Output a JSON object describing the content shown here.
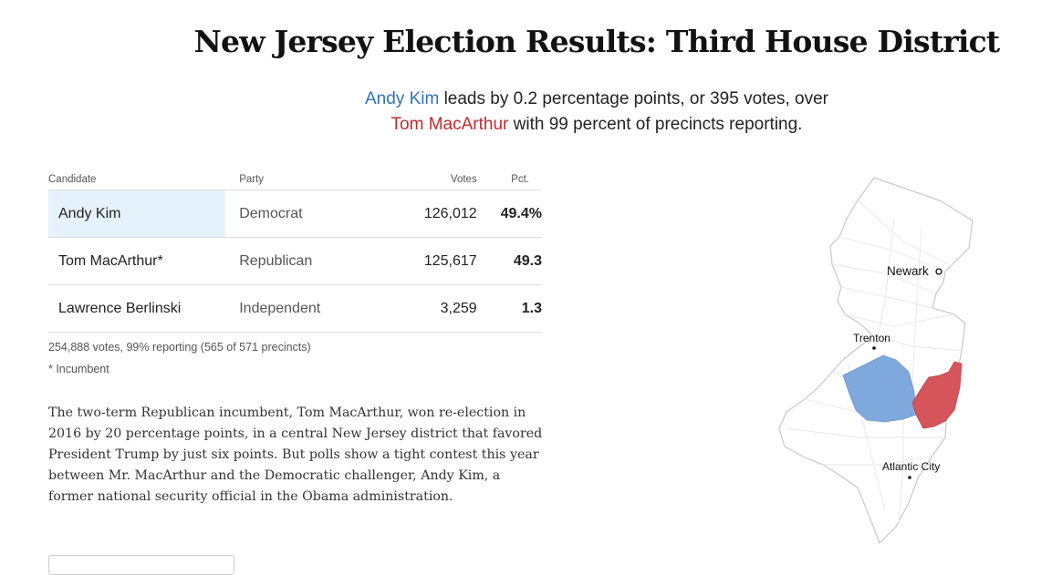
{
  "title": "New Jersey Election Results: Third House District",
  "summary": {
    "leader": "Andy Kim",
    "text1": " leads by 0.2 percentage points, or 395 votes, over",
    "trailer": "Tom MacArthur",
    "text2": " with 99 percent of precincts reporting."
  },
  "table": {
    "headers": {
      "candidate": "Candidate",
      "party": "Party",
      "votes": "Votes",
      "pct": "Pct."
    },
    "rows": [
      {
        "candidate": "Andy Kim",
        "party": "Democrat",
        "votes": "126,012",
        "pct": "49.4%"
      },
      {
        "candidate": "Tom MacArthur*",
        "party": "Republican",
        "votes": "125,617",
        "pct": "49.3"
      },
      {
        "candidate": "Lawrence Berlinski",
        "party": "Independent",
        "votes": "3,259",
        "pct": "1.3"
      }
    ]
  },
  "reporting": "254,888 votes, 99% reporting (565 of 571 precincts)",
  "incumbent_note": "* Incumbent",
  "body": "The two-term Republican incumbent, Tom MacArthur, won re-election in 2016 by 20 percentage points, in a central New Jersey district that favored President Trump by just six points. But polls show a tight contest this year between Mr. MacArthur and the Democratic challenger, Andy Kim, a former national security official in the Obama administration.",
  "map": {
    "cities": [
      "Newark",
      "Trenton",
      "Atlantic City"
    ],
    "colors": {
      "democrat": "#7fa9dc",
      "republican": "#d6555a",
      "outline": "#cfcfcf"
    }
  }
}
